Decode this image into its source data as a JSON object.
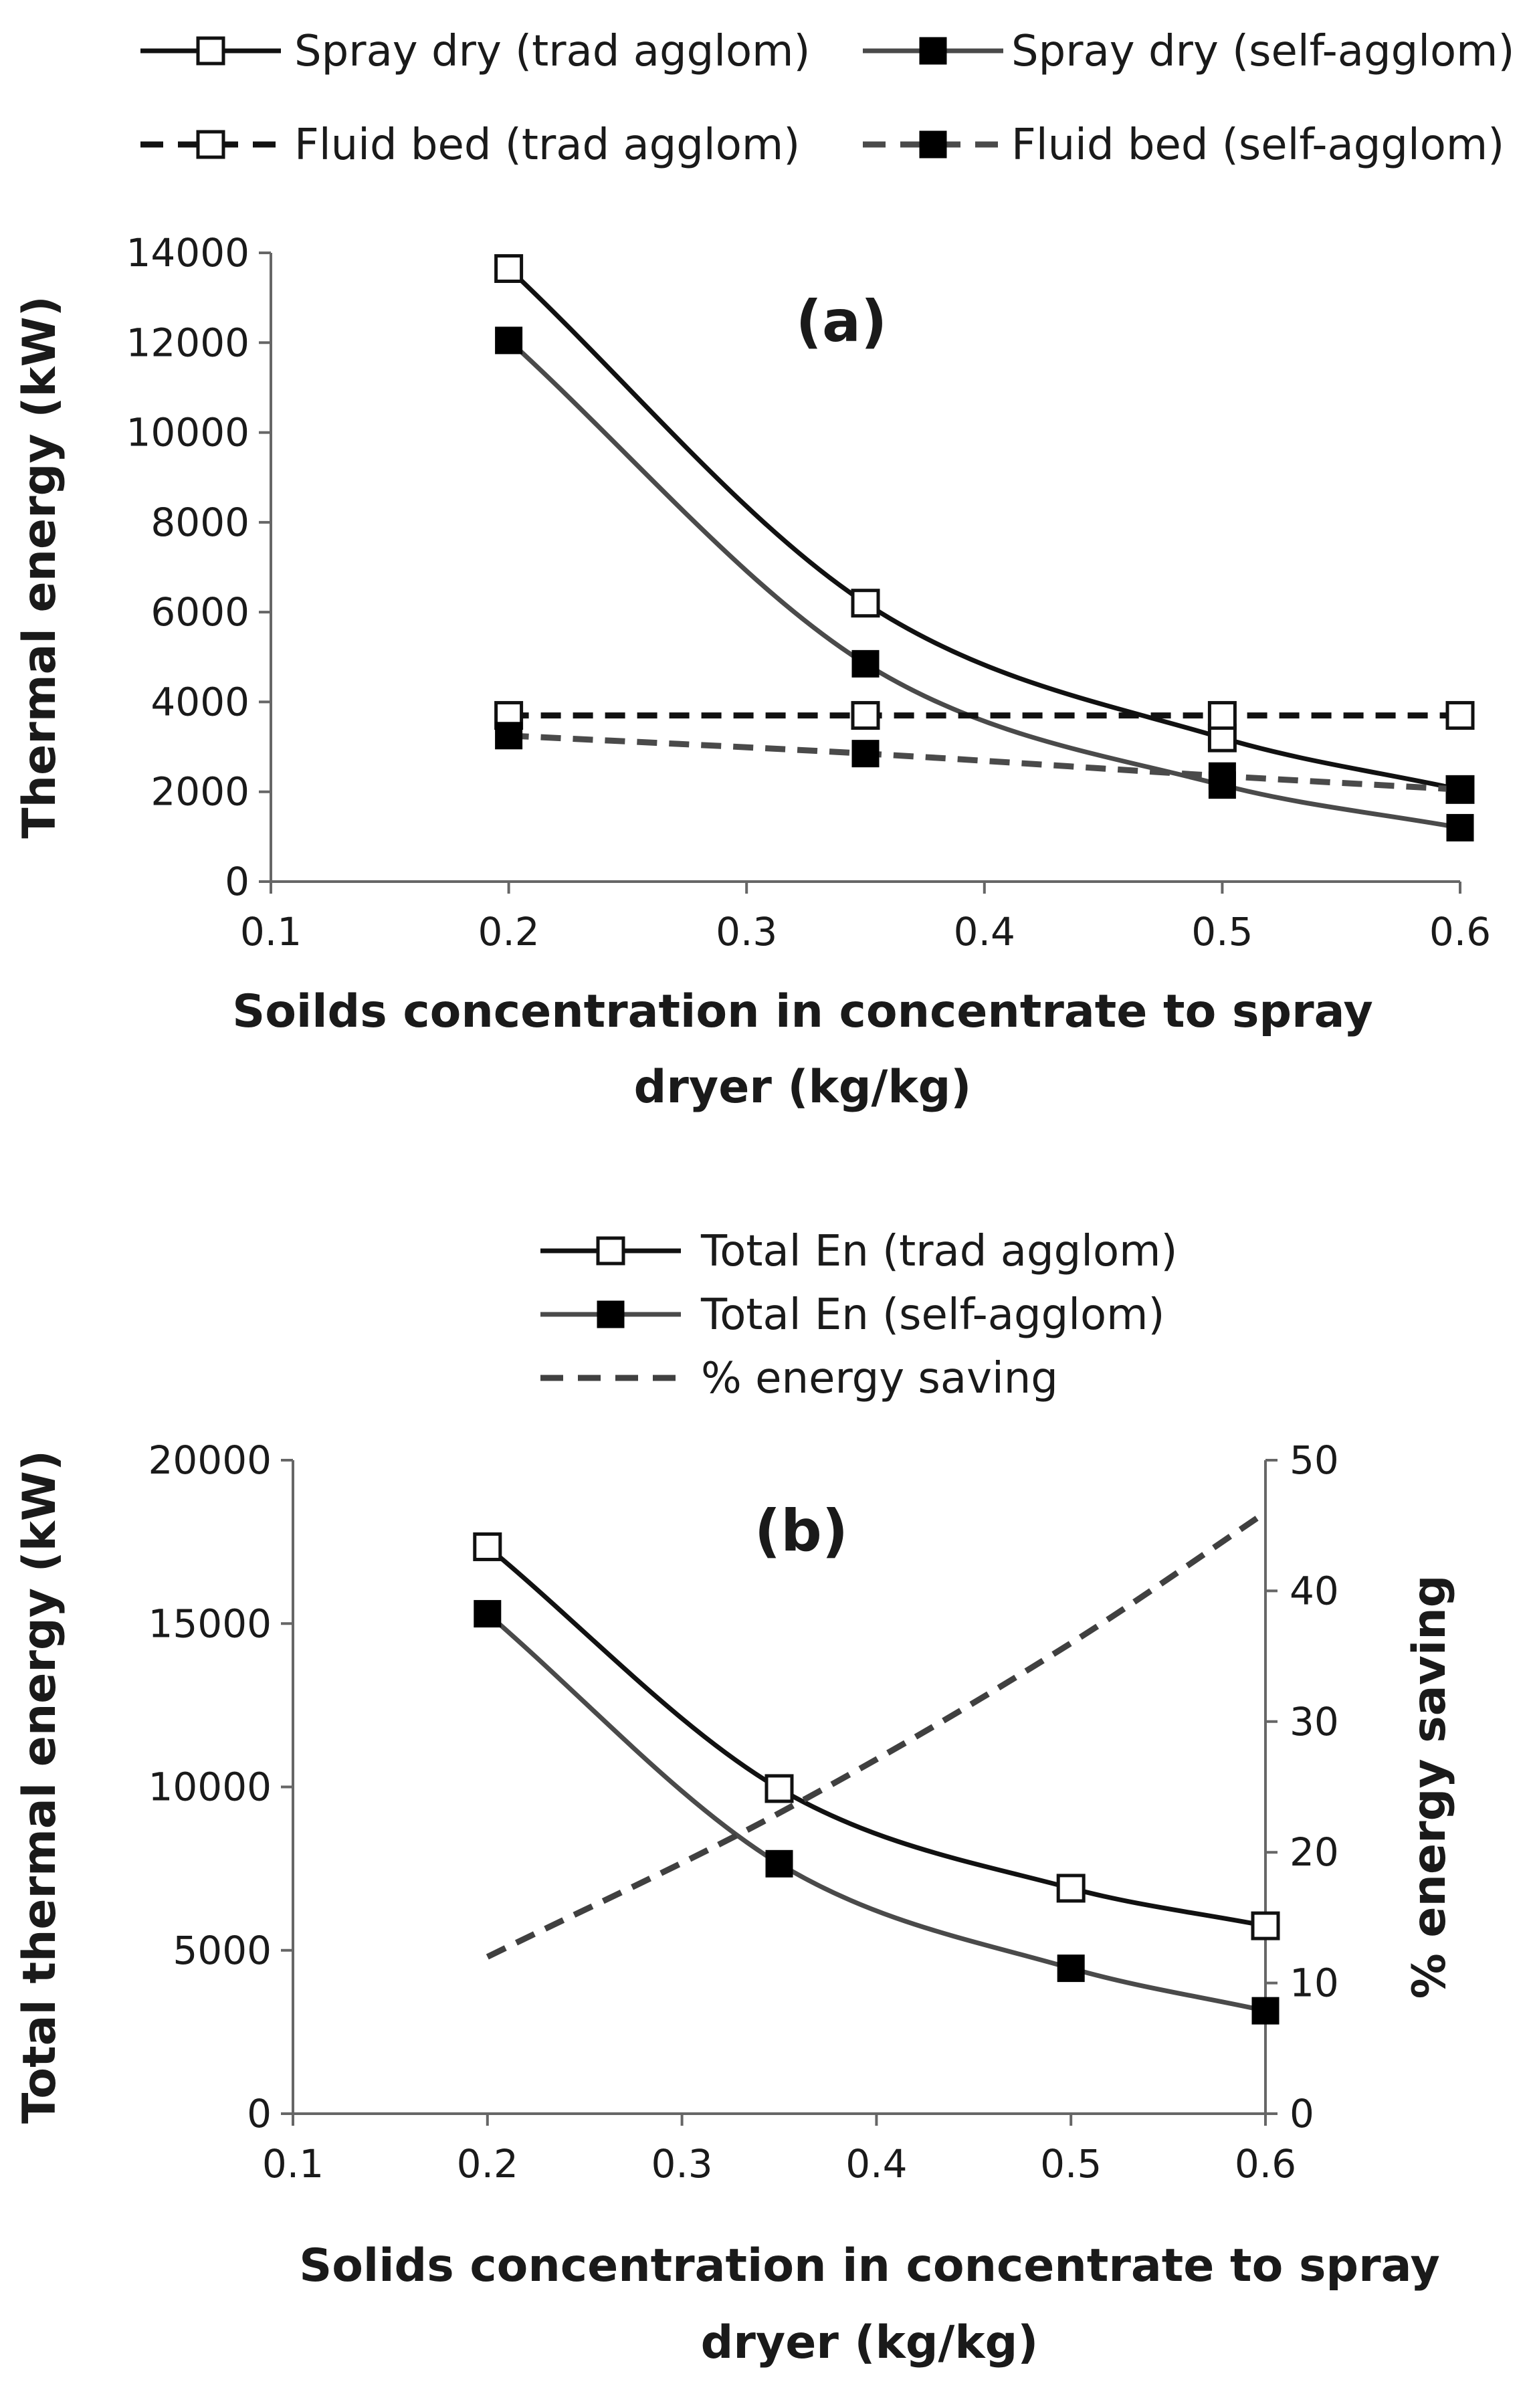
{
  "chart_data": [
    {
      "type": "line",
      "panel_label": "(a)",
      "xlabel": [
        "Soilds concentration in concentrate to spray",
        "dryer (kg/kg)"
      ],
      "ylabel": "Thermal energy (kW)",
      "xlim": [
        0.1,
        0.6
      ],
      "ylim": [
        0,
        14000
      ],
      "xticks": [
        "0.1",
        "0.2",
        "0.3",
        "0.4",
        "0.5",
        "0.6"
      ],
      "yticks": [
        "0",
        "2000",
        "4000",
        "6000",
        "8000",
        "10000",
        "12000",
        "14000"
      ],
      "legend_position": "top",
      "series": [
        {
          "name": "Spray dry (trad agglom)",
          "color": "#111111",
          "dash": "solid",
          "marker": "open-square",
          "x": [
            0.2,
            0.35,
            0.5,
            0.6
          ],
          "values": [
            13650,
            6200,
            3200,
            2050
          ]
        },
        {
          "name": "Spray dry (self-agglom)",
          "color": "#4a4a4a",
          "dash": "solid",
          "marker": "filled-square",
          "x": [
            0.2,
            0.35,
            0.5,
            0.6
          ],
          "values": [
            12050,
            4850,
            2150,
            1200
          ]
        },
        {
          "name": "Fluid bed (trad agglom)",
          "color": "#111111",
          "dash": "dashed",
          "marker": "open-square",
          "x": [
            0.2,
            0.35,
            0.5,
            0.6
          ],
          "values": [
            3700,
            3700,
            3700,
            3700
          ]
        },
        {
          "name": "Fluid bed (self-agglom)",
          "color": "#4a4a4a",
          "dash": "dashed",
          "marker": "filled-square",
          "x": [
            0.2,
            0.35,
            0.5,
            0.6
          ],
          "values": [
            3250,
            2850,
            2350,
            2050
          ]
        }
      ]
    },
    {
      "type": "line",
      "panel_label": "(b)",
      "xlabel": [
        "Solids concentration in concentrate to spray",
        "dryer (kg/kg)"
      ],
      "ylabel": "Total thermal energy (kW)",
      "y2label": "% energy saving",
      "xlim": [
        0.1,
        0.6
      ],
      "ylim": [
        0,
        20000
      ],
      "y2lim": [
        0,
        50
      ],
      "xticks": [
        "0.1",
        "0.2",
        "0.3",
        "0.4",
        "0.5",
        "0.6"
      ],
      "yticks": [
        "0",
        "5000",
        "10000",
        "15000",
        "20000"
      ],
      "y2ticks": [
        "0",
        "10",
        "20",
        "30",
        "40",
        "50"
      ],
      "legend_position": "top",
      "series": [
        {
          "name": "Total En (trad agglom)",
          "color": "#111111",
          "dash": "solid",
          "marker": "open-square",
          "axis": "left",
          "x": [
            0.2,
            0.35,
            0.5,
            0.6
          ],
          "values": [
            17350,
            9950,
            6900,
            5750
          ]
        },
        {
          "name": "Total En (self-agglom)",
          "color": "#4a4a4a",
          "dash": "solid",
          "marker": "filled-square",
          "axis": "left",
          "x": [
            0.2,
            0.35,
            0.5,
            0.6
          ],
          "values": [
            15300,
            7650,
            4450,
            3150
          ]
        },
        {
          "name": "% energy saving",
          "color": "#404040",
          "dash": "dashed",
          "marker": "none",
          "axis": "right",
          "x": [
            0.2,
            0.35,
            0.5,
            0.6
          ],
          "values": [
            12,
            23,
            36,
            46
          ]
        }
      ]
    }
  ]
}
